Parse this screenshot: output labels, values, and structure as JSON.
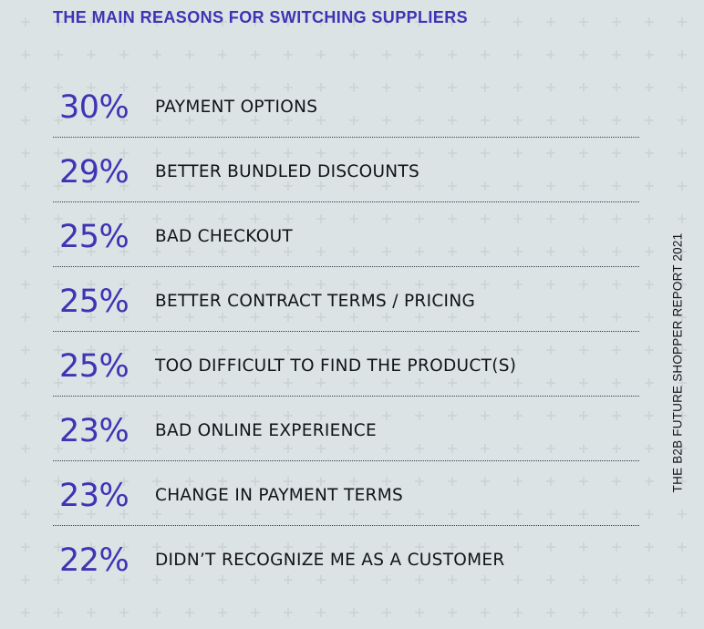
{
  "colors": {
    "background": "#dbe3e5",
    "grid_cross": "#c9d2d4",
    "accent": "#3e34b4",
    "text": "#111418",
    "divider": "#2e3a44"
  },
  "chart_data": {
    "type": "table",
    "title": "THE MAIN REASONS FOR SWITCHING SUPPLIERS",
    "categories": [
      "PAYMENT OPTIONS",
      "BETTER BUNDLED DISCOUNTS",
      "BAD CHECKOUT",
      "BETTER CONTRACT TERMS / PRICING",
      "TOO DIFFICULT TO FIND THE PRODUCT(S)",
      "BAD ONLINE EXPERIENCE",
      "CHANGE IN PAYMENT TERMS",
      "DIDN’T RECOGNIZE ME AS A CUSTOMER"
    ],
    "values": [
      30,
      29,
      25,
      25,
      25,
      23,
      23,
      22
    ],
    "value_labels": [
      "30%",
      "29%",
      "25%",
      "25%",
      "25%",
      "23%",
      "23%",
      "22%"
    ],
    "unit": "%"
  },
  "side_label": "THE B2B FUTURE SHOPPER REPORT 2021"
}
